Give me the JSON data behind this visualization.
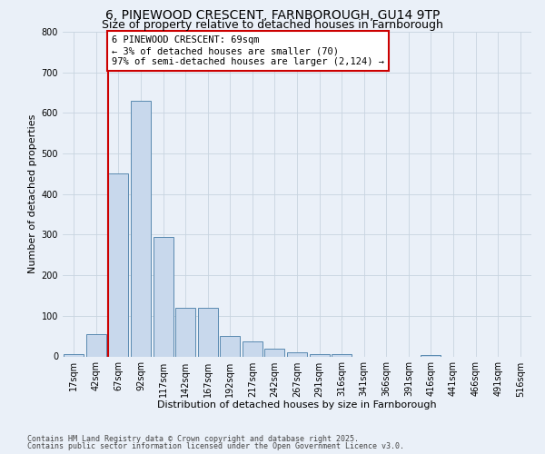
{
  "title_line1": "6, PINEWOOD CRESCENT, FARNBOROUGH, GU14 9TP",
  "title_line2": "Size of property relative to detached houses in Farnborough",
  "xlabel": "Distribution of detached houses by size in Farnborough",
  "ylabel": "Number of detached properties",
  "footnote1": "Contains HM Land Registry data © Crown copyright and database right 2025.",
  "footnote2": "Contains public sector information licensed under the Open Government Licence v3.0.",
  "bar_labels": [
    "17sqm",
    "42sqm",
    "67sqm",
    "92sqm",
    "117sqm",
    "142sqm",
    "167sqm",
    "192sqm",
    "217sqm",
    "242sqm",
    "267sqm",
    "291sqm",
    "316sqm",
    "341sqm",
    "366sqm",
    "391sqm",
    "416sqm",
    "441sqm",
    "466sqm",
    "491sqm",
    "516sqm"
  ],
  "bar_values": [
    5,
    55,
    450,
    630,
    295,
    120,
    120,
    50,
    37,
    20,
    10,
    5,
    5,
    0,
    0,
    0,
    3,
    0,
    0,
    0,
    0
  ],
  "bar_color": "#c8d8ec",
  "bar_edge_color": "#5a8ab0",
  "annotation_text": "6 PINEWOOD CRESCENT: 69sqm\n← 3% of detached houses are smaller (70)\n97% of semi-detached houses are larger (2,124) →",
  "redline_color": "#cc0000",
  "annotation_box_color": "#ffffff",
  "annotation_box_edge": "#cc0000",
  "grid_color": "#c8d4e0",
  "ylim": [
    0,
    800
  ],
  "yticks": [
    0,
    100,
    200,
    300,
    400,
    500,
    600,
    700,
    800
  ],
  "bg_color": "#eaf0f8",
  "title_fontsize": 10,
  "subtitle_fontsize": 9,
  "axis_label_fontsize": 8,
  "tick_fontsize": 7,
  "annot_fontsize": 7.5,
  "footnote_fontsize": 6
}
